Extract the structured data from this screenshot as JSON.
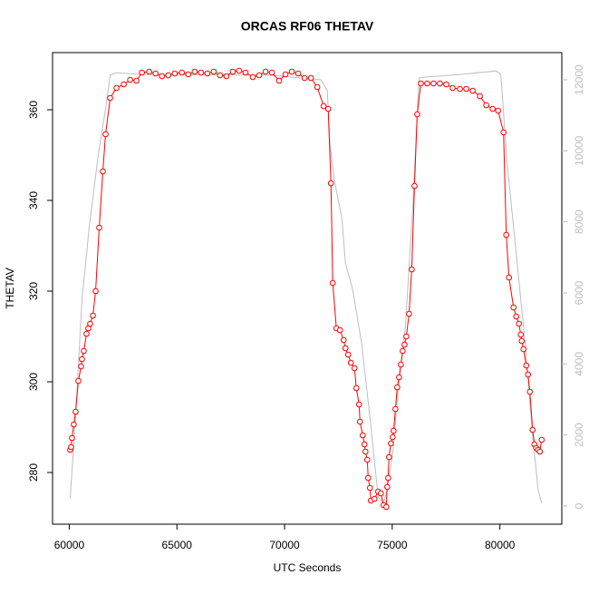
{
  "chart_data": {
    "type": "line",
    "title": "ORCAS RF06 THETAV",
    "xlabel": "UTC Seconds",
    "ylabel": "THETAV",
    "xlim": [
      59224,
      82876
    ],
    "ylim": [
      268.6,
      372.6
    ],
    "y2lim": [
      -511,
      12766
    ],
    "xticks": [
      60000,
      65000,
      70000,
      75000,
      80000
    ],
    "yticks": [
      280,
      300,
      320,
      340,
      360
    ],
    "y2ticks": [
      0,
      2000,
      4000,
      6000,
      8000,
      10000,
      12000
    ],
    "series": [
      {
        "color": "#ff0000",
        "markers": true,
        "x": [
          60042,
          60084,
          60127,
          60211,
          60295,
          60422,
          60549,
          60591,
          60675,
          60802,
          60886,
          60970,
          61097,
          61224,
          61392,
          61561,
          61688,
          61899,
          62194,
          62532,
          62827,
          63122,
          63376,
          63713,
          64008,
          64304,
          64599,
          64895,
          65232,
          65527,
          65823,
          66118,
          66414,
          66709,
          67004,
          67300,
          67595,
          67890,
          68186,
          68523,
          68819,
          69114,
          69409,
          69747,
          70042,
          70338,
          70633,
          70928,
          71224,
          71519,
          71814,
          72025,
          72152,
          72236,
          72405,
          72574,
          72743,
          72827,
          72954,
          73080,
          73249,
          73333,
          73460,
          73502,
          73629,
          73713,
          73755,
          73840,
          73882,
          73966,
          74008,
          74177,
          74346,
          74473,
          74599,
          74726,
          74768,
          74810,
          74852,
          74937,
          75021,
          75063,
          75148,
          75232,
          75316,
          75401,
          75485,
          75570,
          75654,
          75781,
          75907,
          76034,
          76160,
          76329,
          76624,
          76920,
          77215,
          77511,
          77806,
          78143,
          78439,
          78734,
          79072,
          79367,
          79662,
          79916,
          80169,
          80295,
          80422,
          80633,
          80759,
          80886,
          80970,
          81013,
          81097,
          81224,
          81308,
          81392,
          81519,
          81603,
          81688,
          81772,
          81857,
          81941
        ],
        "values": [
          285.0,
          285.6,
          287.6,
          290.6,
          293.4,
          300.2,
          303.4,
          305,
          306.8,
          310.6,
          311.8,
          312.8,
          314.6,
          320,
          334,
          346.4,
          354.6,
          362.6,
          364.8,
          365.6,
          366.6,
          366.4,
          368.2,
          368.4,
          368,
          367.4,
          367.6,
          368,
          368.2,
          367.8,
          368.4,
          368.2,
          368,
          368.4,
          367.6,
          367.4,
          368.4,
          368.6,
          368.2,
          367.2,
          367.6,
          368.4,
          368.2,
          366.4,
          367.8,
          368.4,
          368,
          367,
          367,
          365,
          360.8,
          360.2,
          343.8,
          321.8,
          311.8,
          311.4,
          309.2,
          307.4,
          306,
          304.2,
          303,
          298.6,
          295,
          291.2,
          288.2,
          286.2,
          284.6,
          282.8,
          278.8,
          276.6,
          273.8,
          274.2,
          275.8,
          275.4,
          272.8,
          272.4,
          276.8,
          278.8,
          283.4,
          286.4,
          287.8,
          289.2,
          294,
          298.8,
          301,
          303.8,
          306.8,
          308.2,
          310,
          315,
          324.8,
          343.2,
          359,
          365.8,
          365.8,
          365.8,
          365.8,
          365.6,
          364.8,
          364.6,
          364.6,
          364.2,
          363,
          361,
          360.2,
          359.8,
          355,
          332.4,
          323,
          316.4,
          314.4,
          312.8,
          310.4,
          309,
          307.2,
          303.6,
          301.6,
          297.8,
          289.4,
          286.2,
          285.4,
          285,
          284.6,
          287.2
        ]
      },
      {
        "color": "#bebebe",
        "axis": "y2",
        "markers": false,
        "x": [
          60042,
          60295,
          60591,
          60928,
          61350,
          61688,
          61899,
          62194,
          63460,
          69367,
          71688,
          71983,
          72110,
          72321,
          72658,
          72827,
          73165,
          73586,
          74008,
          74346,
          74599,
          74768,
          75021,
          75274,
          75612,
          75949,
          76245,
          76540,
          77806,
          79831,
          80042,
          80338,
          80759,
          81181,
          81519,
          81772,
          81941
        ],
        "values": [
          204,
          2500,
          5820,
          7860,
          9900,
          11180,
          12130,
          12200,
          12150,
          12130,
          12000,
          11690,
          10160,
          9140,
          8120,
          6840,
          6080,
          4540,
          2250,
          255,
          77,
          460,
          1480,
          3270,
          5050,
          8370,
          12050,
          12080,
          12130,
          12250,
          12150,
          9650,
          7100,
          4540,
          1990,
          460,
          77
        ]
      }
    ]
  }
}
